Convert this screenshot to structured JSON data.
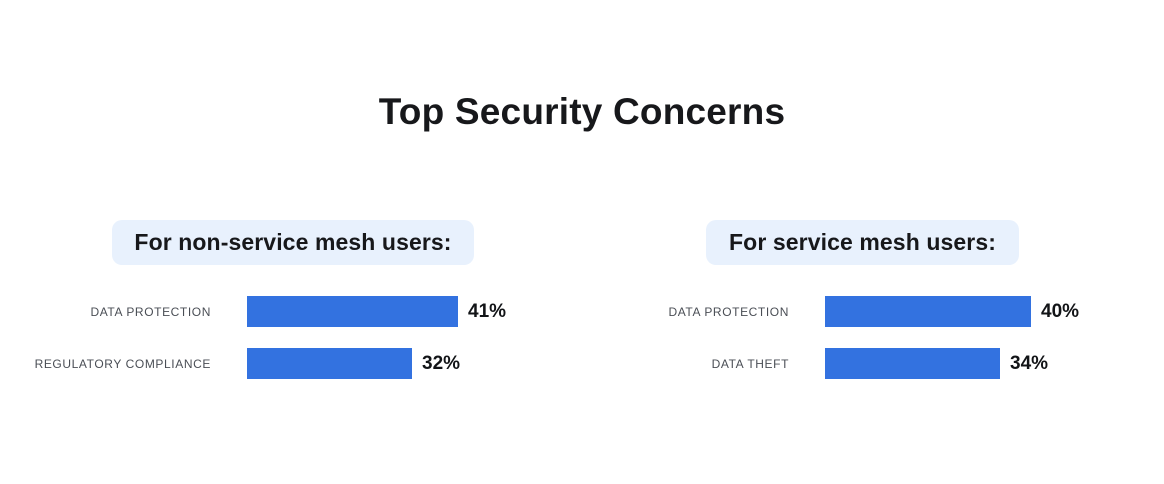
{
  "title": "Top Security Concerns",
  "colors": {
    "background": "#ffffff",
    "bar": "#3372e0",
    "pill_bg": "#e8f1fd",
    "title": "#17181b",
    "label": "#4a4e55",
    "value": "#121417"
  },
  "chart_data": [
    {
      "type": "bar",
      "orientation": "horizontal",
      "title": "For non-service mesh users:",
      "categories": [
        "DATA PROTECTION",
        "REGULATORY COMPLIANCE"
      ],
      "values": [
        41,
        32
      ],
      "value_labels": [
        "41%",
        "32%"
      ],
      "unit": "percent",
      "grid": false,
      "legend": false
    },
    {
      "type": "bar",
      "orientation": "horizontal",
      "title": "For service mesh users:",
      "categories": [
        "DATA PROTECTION",
        "DATA THEFT"
      ],
      "values": [
        40,
        34
      ],
      "value_labels": [
        "40%",
        "34%"
      ],
      "unit": "percent",
      "grid": false,
      "legend": false
    }
  ]
}
